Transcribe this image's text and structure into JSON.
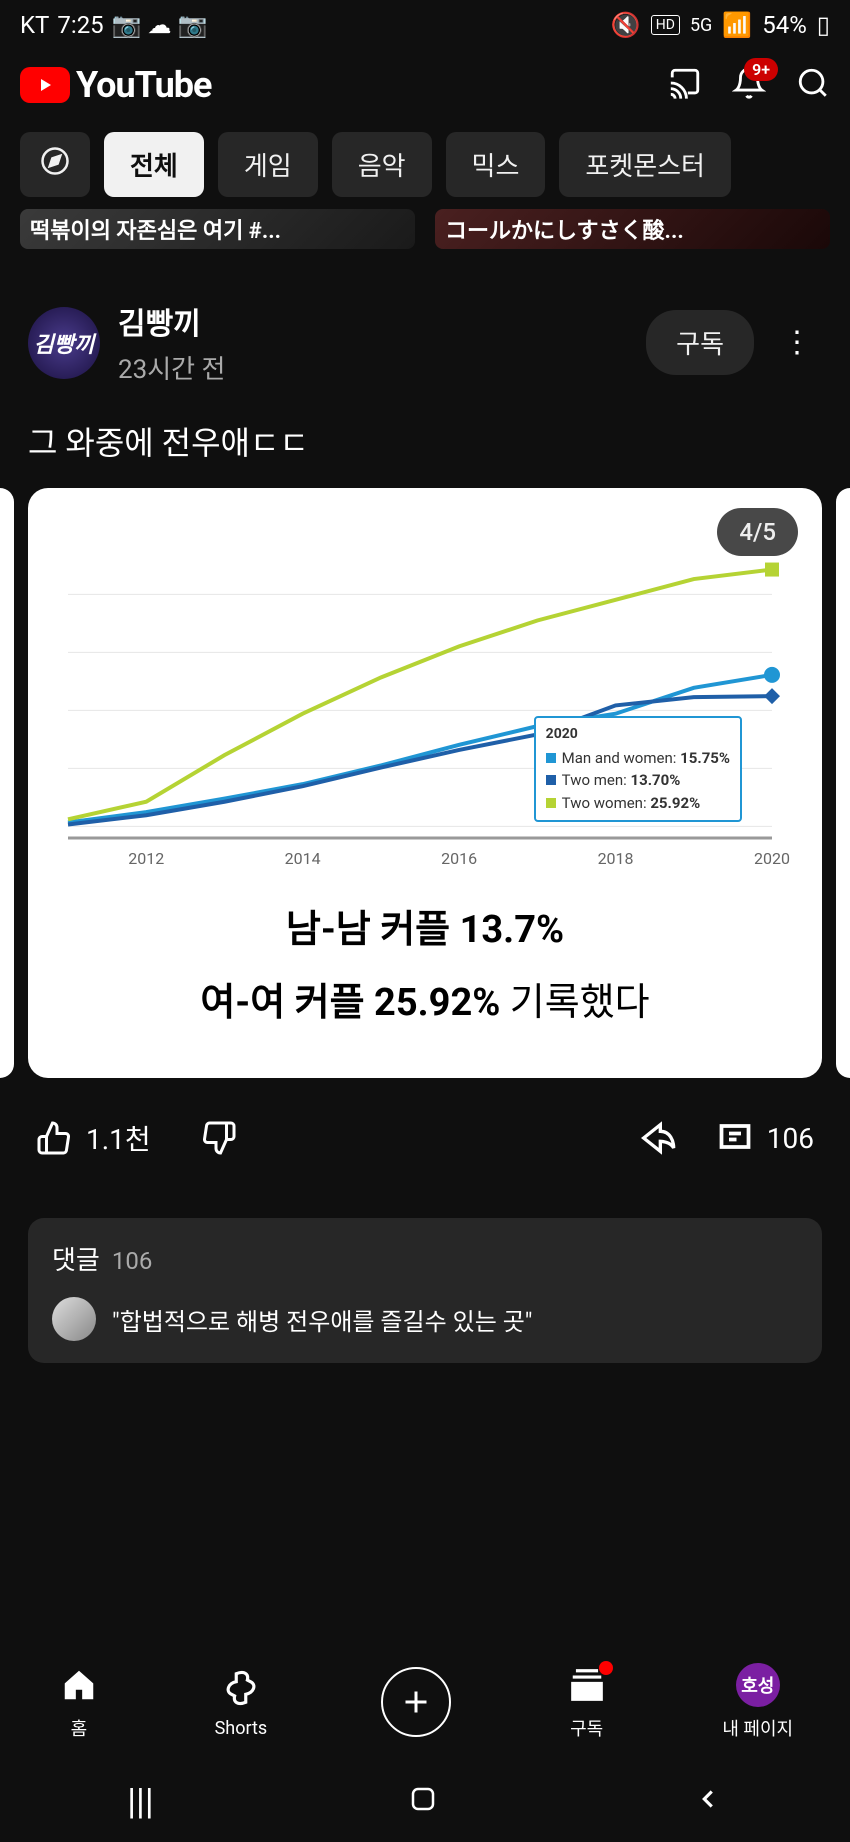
{
  "status_bar": {
    "carrier": "KT",
    "time": "7:25",
    "battery": "54%",
    "network": "5G",
    "hd": "HD"
  },
  "header": {
    "brand": "YouTube",
    "notif_count": "9+"
  },
  "chips": [
    "전체",
    "게임",
    "음악",
    "믹스",
    "포켓몬스터"
  ],
  "thumbs": [
    "떡볶이의 자존심은 여기 #...",
    "コールかにしすさく酸..."
  ],
  "post": {
    "avatar_text": "김빵끼",
    "channel": "김빵끼",
    "time": "23시간 전",
    "subscribe": "구독",
    "text": "그 와중에 전우애ㄷㄷ"
  },
  "carousel": {
    "page": "4/5"
  },
  "chart": {
    "type": "line",
    "xticks": [
      "2012",
      "2014",
      "2016",
      "2018",
      "2020"
    ],
    "xlim": [
      2011,
      2020
    ],
    "ylim": [
      0,
      28
    ],
    "background_color": "#ffffff",
    "grid_color": "#e6e6e6",
    "axis_color": "#999999",
    "series": [
      {
        "name": "Man and women",
        "color": "#2096d4",
        "marker": "circle",
        "points": [
          [
            2011,
            1.5
          ],
          [
            2012,
            2.5
          ],
          [
            2013,
            3.8
          ],
          [
            2014,
            5.2
          ],
          [
            2015,
            7.0
          ],
          [
            2016,
            9.0
          ],
          [
            2017,
            10.8
          ],
          [
            2018,
            12.0
          ],
          [
            2019,
            14.5
          ],
          [
            2020,
            15.75
          ]
        ]
      },
      {
        "name": "Two men",
        "color": "#1f5fa8",
        "marker": "diamond",
        "points": [
          [
            2011,
            1.3
          ],
          [
            2012,
            2.2
          ],
          [
            2013,
            3.5
          ],
          [
            2014,
            5.0
          ],
          [
            2015,
            6.8
          ],
          [
            2016,
            8.5
          ],
          [
            2017,
            10.0
          ],
          [
            2018,
            12.8
          ],
          [
            2019,
            13.6
          ],
          [
            2020,
            13.7
          ]
        ]
      },
      {
        "name": "Two women",
        "color": "#b5d334",
        "marker": "square",
        "points": [
          [
            2011,
            1.8
          ],
          [
            2012,
            3.5
          ],
          [
            2013,
            8.0
          ],
          [
            2014,
            12.0
          ],
          [
            2015,
            15.5
          ],
          [
            2016,
            18.5
          ],
          [
            2017,
            21.0
          ],
          [
            2018,
            23.0
          ],
          [
            2019,
            25.0
          ],
          [
            2020,
            25.92
          ]
        ]
      }
    ],
    "tooltip": {
      "year": "2020",
      "rows": [
        {
          "color": "#2096d4",
          "label": "Man and women:",
          "value": "15.75%"
        },
        {
          "color": "#1f5fa8",
          "label": "Two men:",
          "value": "13.70%"
        },
        {
          "color": "#b5d334",
          "label": "Two women:",
          "value": "25.92%"
        }
      ]
    },
    "caption": {
      "line1": "남-남 커플 13.7%",
      "line2_bold": "여-여 커플 25.92%",
      "line2_light": " 기록했다"
    }
  },
  "engagement": {
    "likes": "1.1천",
    "comments": "106"
  },
  "comments_box": {
    "label": "댓글",
    "count": "106",
    "preview": "\"합법적으로 해병 전우애를 즐길수 있는 곳\""
  },
  "bottom_nav": {
    "home": "홈",
    "shorts": "Shorts",
    "subs": "구독",
    "profile": "내 페이지",
    "profile_initial": "호성"
  }
}
